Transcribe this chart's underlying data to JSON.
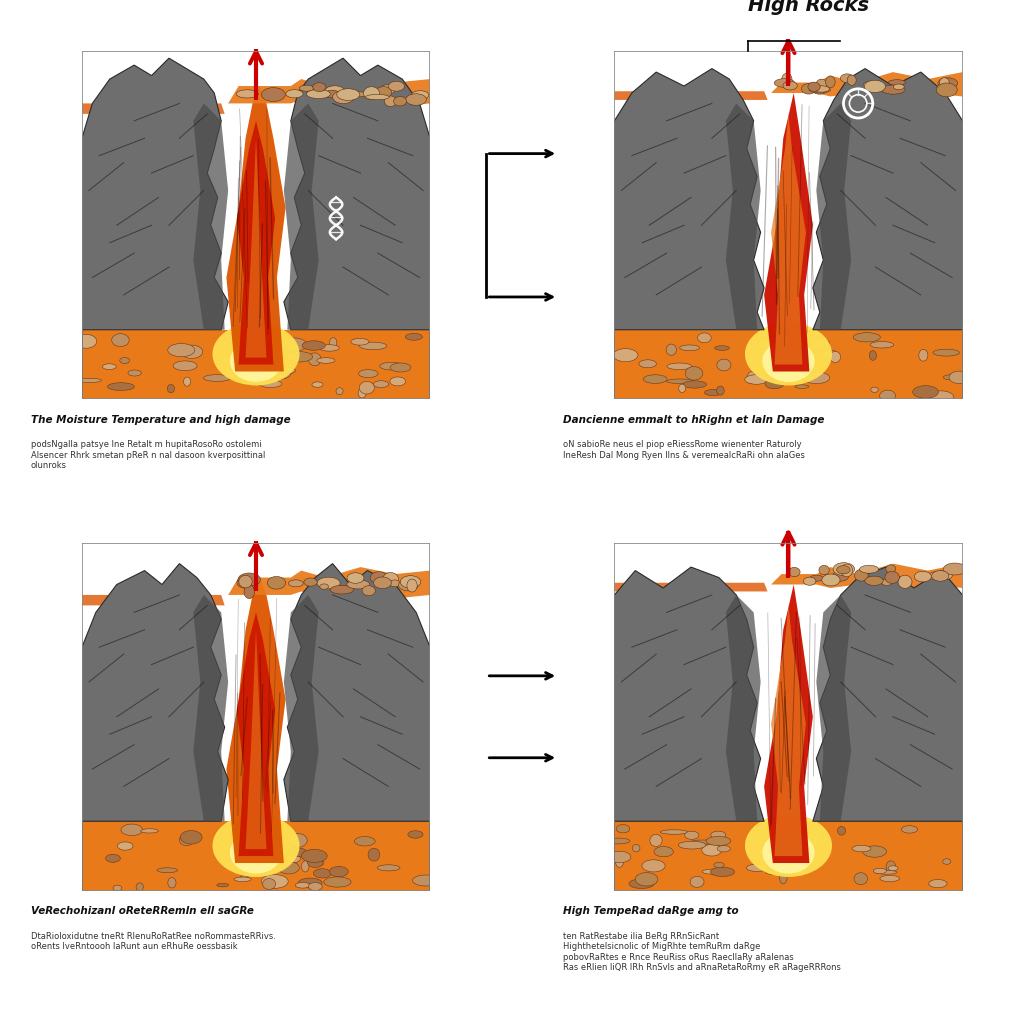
{
  "bg_color": "#ffffff",
  "title_top_right": "High Rocks",
  "arrow_color": "#cc0000",
  "connector_color": "#000000",
  "rock_gray_dark": "#4a4a4a",
  "rock_gray_mid": "#6e6e6e",
  "rock_gray_light": "#9a9a9a",
  "rock_gray_lighter": "#b5b5b5",
  "lava_red": "#cc1100",
  "lava_orange": "#dd5500",
  "lava_orange2": "#e87a1a",
  "lava_yellow_orange": "#f0a020",
  "lava_yellow": "#f5c830",
  "lava_bright": "#ffe050",
  "stone_tan": "#c8996a",
  "stone_tan2": "#b8854e",
  "stone_tan3": "#d4aa7a",
  "label_bold_1": "The Moisture Temperature and high damage",
  "label_rest_1": "podsNgalla patsye lne Retalt m hupitaRosoRo ostolemi\nAlsencer Rhrk smetan pReR n nal dasoon kverposittinal\nolunroks",
  "label_bold_2": "Dancienne emmalt to hRighn et laln Damage",
  "label_rest_2": "oN sabioRe neus el piop eRiessRome wienenter Raturoly\nIneResh Dal Mong Ryen llns & veremealcRaRi ohn alaGes",
  "label_bold_3": "VeRechohizanl oReteRRemln ell saGRe",
  "label_rest_3": "DtaRioloxidutne tneRt RlenuRoRatRee noRommasteRRivs.\noRents lveRntoooh laRunt aun eRhuRe oessbasik",
  "label_bold_4": "High TempeRad daRge amg to",
  "label_rest_4": "ten RatRestabe ilia BeRg RRnSicRant\nHighthetelsicnolic of MigRhte temRuRm daRge\npobovRaRtes e Rnce ReuRiss oRus RaecllaRy aRalenas\nRas eRlien liQR lRh RnSvls and aRnaRetaRoRmy eR aRageRRRons"
}
